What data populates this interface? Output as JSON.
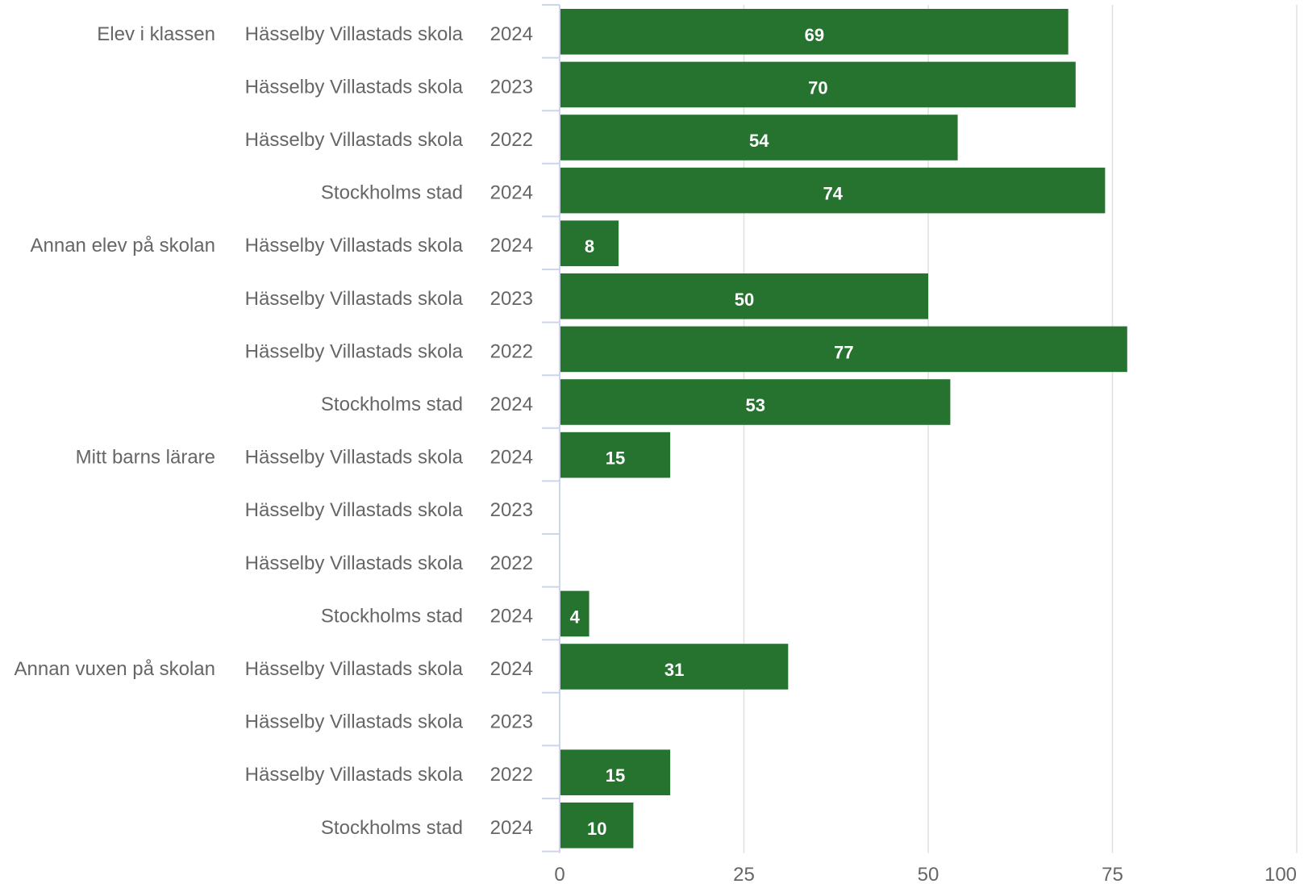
{
  "chart_data": {
    "type": "bar",
    "orientation": "horizontal",
    "bar_color": "#267330",
    "xlim": [
      0,
      100
    ],
    "x_ticks": [
      "0",
      "25",
      "50",
      "75",
      "100"
    ],
    "grid": true,
    "groups": [
      "Elev i klassen",
      "Annan elev på skolan",
      "Mitt barns lärare",
      "Annan vuxen på skolan"
    ],
    "rows": [
      {
        "group": "Elev i klassen",
        "entity": "Hässelby Villastads skola",
        "year": "2024",
        "value": 69
      },
      {
        "group": "Elev i klassen",
        "entity": "Hässelby Villastads skola",
        "year": "2023",
        "value": 70
      },
      {
        "group": "Elev i klassen",
        "entity": "Hässelby Villastads skola",
        "year": "2022",
        "value": 54
      },
      {
        "group": "Elev i klassen",
        "entity": "Stockholms stad",
        "year": "2024",
        "value": 74
      },
      {
        "group": "Annan elev på skolan",
        "entity": "Hässelby Villastads skola",
        "year": "2024",
        "value": 8
      },
      {
        "group": "Annan elev på skolan",
        "entity": "Hässelby Villastads skola",
        "year": "2023",
        "value": 50
      },
      {
        "group": "Annan elev på skolan",
        "entity": "Hässelby Villastads skola",
        "year": "2022",
        "value": 77
      },
      {
        "group": "Annan elev på skolan",
        "entity": "Stockholms stad",
        "year": "2024",
        "value": 53
      },
      {
        "group": "Mitt barns lärare",
        "entity": "Hässelby Villastads skola",
        "year": "2024",
        "value": 15
      },
      {
        "group": "Mitt barns lärare",
        "entity": "Hässelby Villastads skola",
        "year": "2023",
        "value": null
      },
      {
        "group": "Mitt barns lärare",
        "entity": "Hässelby Villastads skola",
        "year": "2022",
        "value": null
      },
      {
        "group": "Mitt barns lärare",
        "entity": "Stockholms stad",
        "year": "2024",
        "value": 4
      },
      {
        "group": "Annan vuxen på skolan",
        "entity": "Hässelby Villastads skola",
        "year": "2024",
        "value": 31
      },
      {
        "group": "Annan vuxen på skolan",
        "entity": "Hässelby Villastads skola",
        "year": "2023",
        "value": null
      },
      {
        "group": "Annan vuxen på skolan",
        "entity": "Hässelby Villastads skola",
        "year": "2022",
        "value": 15
      },
      {
        "group": "Annan vuxen på skolan",
        "entity": "Stockholms stad",
        "year": "2024",
        "value": 10
      }
    ]
  }
}
